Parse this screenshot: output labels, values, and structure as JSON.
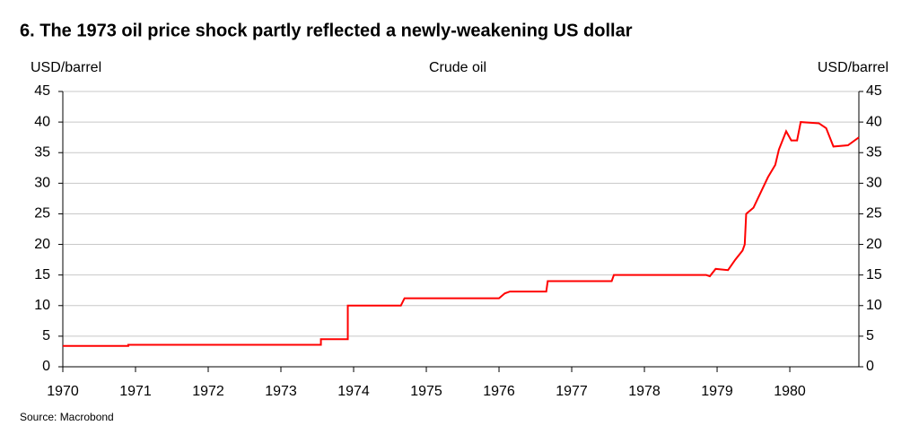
{
  "chart_data": {
    "type": "line",
    "title": "6.  The 1973 oil price shock partly reflected a newly-weakening US dollar",
    "subtitle": "Crude oil",
    "ylabel": "USD/barrel",
    "y2label": "USD/barrel",
    "source": "Source: Macrobond",
    "x": [
      1970,
      1970.9,
      1970.9,
      1973.55,
      1973.55,
      1973.92,
      1973.92,
      1974.65,
      1974.7,
      1976.0,
      1976.08,
      1976.15,
      1976.65,
      1976.67,
      1977.55,
      1977.58,
      1978.85,
      1978.9,
      1978.98,
      1979.15,
      1979.25,
      1979.35,
      1979.38,
      1979.4,
      1979.5,
      1979.6,
      1979.7,
      1979.8,
      1979.85,
      1979.95,
      1980.02,
      1980.1,
      1980.15,
      1980.4,
      1980.5,
      1980.6,
      1980.8,
      1980.95
    ],
    "series": [
      {
        "name": "Crude oil",
        "color": "#ff0000",
        "values": [
          3.4,
          3.4,
          3.6,
          3.6,
          4.5,
          4.5,
          10,
          10,
          11.2,
          11.2,
          12,
          12.3,
          12.3,
          14,
          14,
          15,
          15,
          14.8,
          16,
          15.8,
          17.5,
          19,
          20,
          25,
          26,
          28.5,
          31,
          33,
          35.5,
          38.5,
          37,
          37,
          40,
          39.8,
          39,
          36,
          36.2,
          37.5
        ]
      }
    ],
    "xlim": [
      1970,
      1980.95
    ],
    "xticks": [
      1970,
      1971,
      1972,
      1973,
      1974,
      1975,
      1976,
      1977,
      1978,
      1979,
      1980
    ],
    "ylim": [
      0,
      45
    ],
    "yticks": [
      0,
      5,
      10,
      15,
      20,
      25,
      30,
      35,
      40,
      45
    ],
    "y2lim": [
      0,
      45
    ],
    "y2ticks": [
      0,
      5,
      10,
      15,
      20,
      25,
      30,
      35,
      40,
      45
    ],
    "grid": true
  }
}
